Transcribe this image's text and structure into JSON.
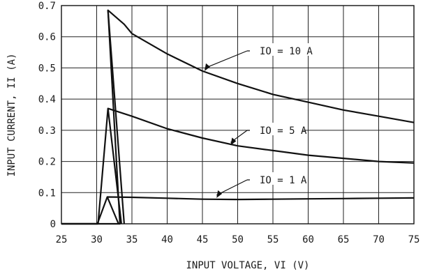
{
  "chart_data": {
    "type": "line",
    "xlabel": "INPUT VOLTAGE, VI (V)",
    "ylabel": "INPUT CURRENT, II (A)",
    "xlim": [
      25,
      75
    ],
    "ylim": [
      0,
      0.7
    ],
    "grid": true,
    "x_ticks": [
      "25",
      "30",
      "35",
      "40",
      "45",
      "50",
      "55",
      "60",
      "65",
      "70",
      "75"
    ],
    "y_ticks": [
      "0",
      "0.1",
      "0.2",
      "0.3",
      "0.4",
      "0.5",
      "0.6",
      "0.7"
    ],
    "x_tick_values": [
      25,
      30,
      35,
      40,
      45,
      50,
      55,
      60,
      65,
      70,
      75
    ],
    "y_tick_values": [
      0,
      0.1,
      0.2,
      0.3,
      0.4,
      0.5,
      0.6,
      0.7
    ],
    "series": [
      {
        "name": "IO = 10 A",
        "label_text": "IO = 10 A",
        "x": [
          25,
          31.6,
          33.9,
          35,
          40,
          45,
          50,
          55,
          60,
          65,
          70,
          75
        ],
        "y": [
          0.0,
          0.685,
          0.64,
          0.61,
          0.545,
          0.49,
          0.45,
          0.415,
          0.39,
          0.365,
          0.345,
          0.325
        ]
      },
      {
        "name": "IO = 5 A",
        "label_text": "IO = 5 A",
        "x": [
          25,
          31.6,
          35,
          40,
          45,
          50,
          55,
          60,
          65,
          70,
          75
        ],
        "y": [
          0.0,
          0.37,
          0.345,
          0.305,
          0.275,
          0.25,
          0.235,
          0.22,
          0.21,
          0.2,
          0.195
        ]
      },
      {
        "name": "IO = 1 A",
        "label_text": "IO = 1 A",
        "x": [
          25,
          31.5,
          35,
          40,
          45,
          50,
          55,
          60,
          65,
          70,
          75
        ],
        "y": [
          0.0,
          0.086,
          0.085,
          0.082,
          0.079,
          0.078,
          0.079,
          0.08,
          0.081,
          0.082,
          0.083
        ]
      }
    ]
  }
}
